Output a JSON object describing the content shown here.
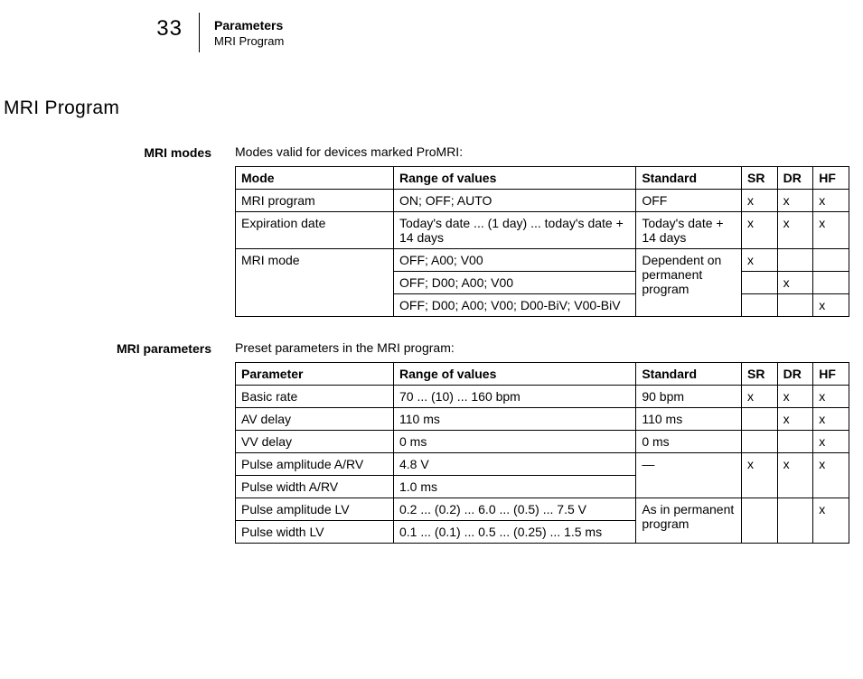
{
  "header": {
    "page_number": "33",
    "title": "Parameters",
    "subtitle": "MRI Program"
  },
  "main_heading": "MRI Program",
  "sections": {
    "modes": {
      "label": "MRI modes",
      "intro": "Modes valid for devices marked ProMRI:",
      "columns": [
        "Mode",
        "Range of values",
        "Standard",
        "SR",
        "DR",
        "HF"
      ],
      "rows": [
        {
          "mode": "MRI program",
          "range": "ON; OFF; AUTO",
          "standard": "OFF",
          "sr": "x",
          "dr": "x",
          "hf": "x"
        },
        {
          "mode": "Expiration date",
          "range": "Today's date ... (1 day) ... today's date + 14 days",
          "standard": "Today's date + 14 days",
          "sr": "x",
          "dr": "x",
          "hf": "x"
        },
        {
          "mode": "MRI mode",
          "mode_rowspan": 3,
          "range": "OFF; A00; V00",
          "standard": "Dependent on permanent program",
          "standard_rowspan": 3,
          "sr": "x",
          "dr": "",
          "hf": ""
        },
        {
          "range": "OFF; D00; A00; V00",
          "sr": "",
          "dr": "x",
          "hf": ""
        },
        {
          "range": "OFF; D00; A00; V00; D00-BiV; V00-BiV",
          "sr": "",
          "dr": "",
          "hf": "x"
        }
      ]
    },
    "params": {
      "label": "MRI parameters",
      "intro": "Preset parameters in the MRI program:",
      "columns": [
        "Parameter",
        "Range of values",
        "Standard",
        "SR",
        "DR",
        "HF"
      ],
      "rows": [
        {
          "param": "Basic rate",
          "range": "70 ... (10) ... 160 bpm",
          "standard": "90 bpm",
          "sr": "x",
          "dr": "x",
          "hf": "x"
        },
        {
          "param": "AV delay",
          "range": "110 ms",
          "standard": "110 ms",
          "sr": "",
          "dr": "x",
          "hf": "x"
        },
        {
          "param": "VV delay",
          "range": "0 ms",
          "standard": "0 ms",
          "sr": "",
          "dr": "",
          "hf": "x"
        },
        {
          "param": "Pulse amplitude A/RV",
          "range": "4.8 V",
          "standard": "—",
          "standard_rowspan": 2,
          "sr": "x",
          "sr_rowspan": 2,
          "dr": "x",
          "dr_rowspan": 2,
          "hf": "x",
          "hf_rowspan": 2
        },
        {
          "param": "Pulse width A/RV",
          "range": "1.0 ms"
        },
        {
          "param": "Pulse amplitude LV",
          "range": "0.2 ... (0.2) ... 6.0 ... (0.5) ... 7.5 V",
          "standard": "As in permanent program",
          "standard_rowspan": 2,
          "sr": "",
          "sr_rowspan": 2,
          "dr": "",
          "dr_rowspan": 2,
          "hf": "x",
          "hf_rowspan": 2
        },
        {
          "param": "Pulse width LV",
          "range": "0.1 ... (0.1) ... 0.5 ... (0.25) ... 1.5 ms"
        }
      ]
    }
  }
}
